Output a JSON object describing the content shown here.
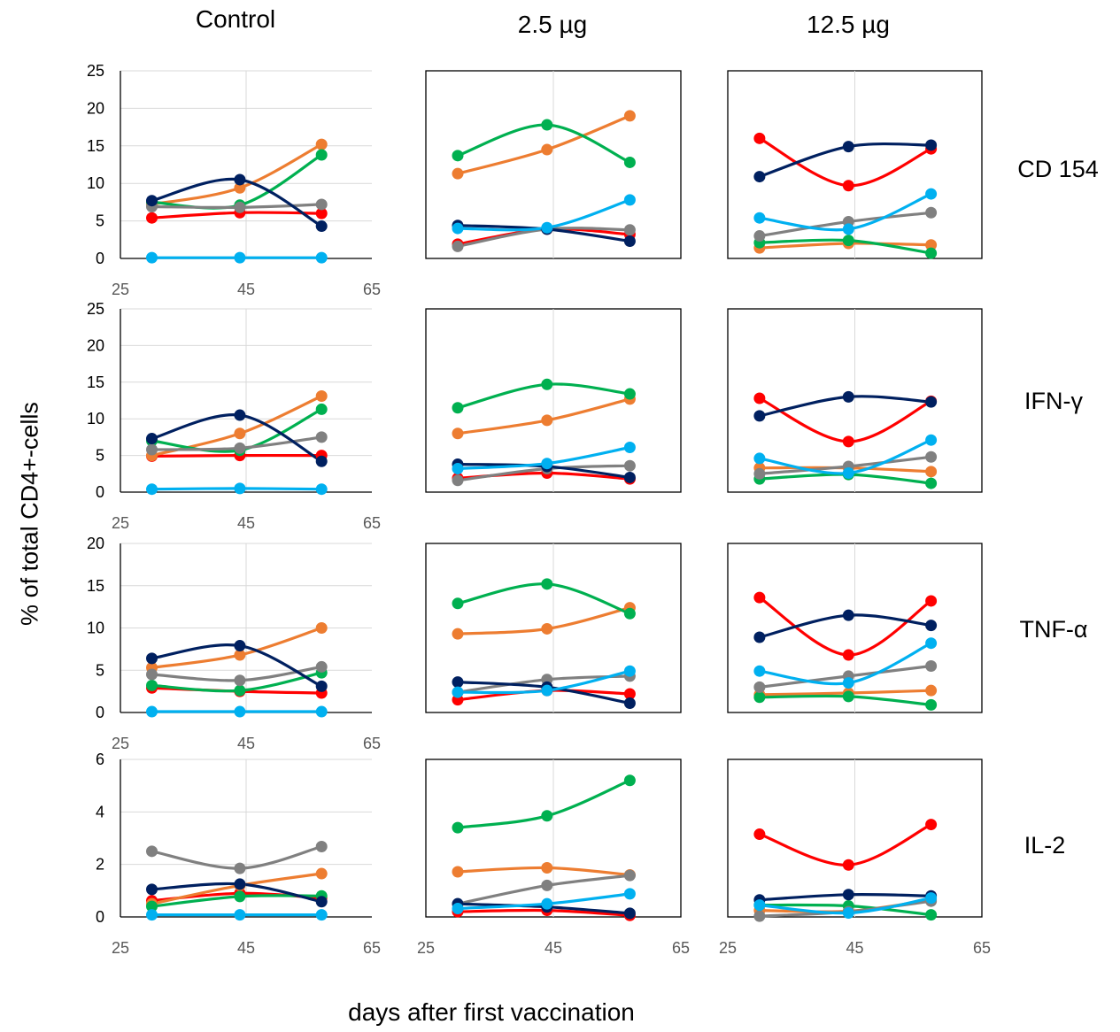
{
  "columns": [
    "Control",
    "2.5 µg",
    "12.5 µg"
  ],
  "rows": [
    "CD 154",
    "IFN-γ",
    "TNF-α",
    "IL-2"
  ],
  "ylabel": "% of total CD4+-cells",
  "xlabel": "days after first vaccination",
  "colors": {
    "red": "#ff0000",
    "orange": "#ed7d31",
    "green": "#00b050",
    "gray": "#808080",
    "navy": "#002060",
    "lightblue": "#00b0f0"
  },
  "chart_data": [
    {
      "type": "line",
      "title": "",
      "row": "CD 154",
      "column": "Control",
      "x": [
        30,
        44,
        57
      ],
      "xlim": [
        25,
        65
      ],
      "xticks": [
        "25",
        "45",
        "65"
      ],
      "ylim": [
        0,
        25
      ],
      "yticks": [
        "0",
        "5",
        "10",
        "15",
        "20",
        "25"
      ],
      "series": [
        {
          "color": "red",
          "values": [
            5.4,
            6.1,
            6.0
          ]
        },
        {
          "color": "orange",
          "values": [
            7.2,
            9.4,
            15.2
          ]
        },
        {
          "color": "green",
          "values": [
            7.5,
            7.1,
            13.8
          ]
        },
        {
          "color": "gray",
          "values": [
            6.9,
            6.8,
            7.2
          ]
        },
        {
          "color": "navy",
          "values": [
            7.7,
            10.5,
            4.3
          ]
        },
        {
          "color": "lightblue",
          "values": [
            0.1,
            0.1,
            0.1
          ]
        }
      ]
    },
    {
      "type": "line",
      "title": "",
      "row": "CD 154",
      "column": "2.5 µg",
      "x": [
        30,
        44,
        57
      ],
      "xlim": [
        25,
        65
      ],
      "ylim": [
        0,
        25
      ],
      "series": [
        {
          "color": "red",
          "values": [
            1.9,
            3.9,
            3.2
          ]
        },
        {
          "color": "orange",
          "values": [
            11.3,
            14.5,
            19.0
          ]
        },
        {
          "color": "green",
          "values": [
            13.7,
            17.8,
            12.8
          ]
        },
        {
          "color": "gray",
          "values": [
            1.6,
            3.9,
            3.8
          ]
        },
        {
          "color": "navy",
          "values": [
            4.4,
            3.9,
            2.3
          ]
        },
        {
          "color": "lightblue",
          "values": [
            4.0,
            4.1,
            7.8
          ]
        }
      ]
    },
    {
      "type": "line",
      "title": "",
      "row": "CD 154",
      "column": "12.5 µg",
      "x": [
        30,
        44,
        57
      ],
      "xlim": [
        25,
        65
      ],
      "ylim": [
        0,
        25
      ],
      "series": [
        {
          "color": "red",
          "values": [
            16.0,
            9.7,
            14.6
          ]
        },
        {
          "color": "orange",
          "values": [
            1.4,
            2.0,
            1.8
          ]
        },
        {
          "color": "green",
          "values": [
            2.1,
            2.4,
            0.7
          ]
        },
        {
          "color": "gray",
          "values": [
            3.0,
            4.9,
            6.1
          ]
        },
        {
          "color": "navy",
          "values": [
            10.9,
            14.9,
            15.1
          ]
        },
        {
          "color": "lightblue",
          "values": [
            5.4,
            3.9,
            8.6
          ]
        }
      ]
    },
    {
      "type": "line",
      "title": "",
      "row": "IFN-γ",
      "column": "Control",
      "x": [
        30,
        44,
        57
      ],
      "xlim": [
        25,
        65
      ],
      "xticks": [
        "25",
        "45",
        "65"
      ],
      "ylim": [
        0,
        25
      ],
      "yticks": [
        "0",
        "5",
        "10",
        "15",
        "20",
        "25"
      ],
      "series": [
        {
          "color": "red",
          "values": [
            4.9,
            5.0,
            5.0
          ]
        },
        {
          "color": "orange",
          "values": [
            5.0,
            8.0,
            13.1
          ]
        },
        {
          "color": "green",
          "values": [
            7.0,
            5.7,
            11.3
          ]
        },
        {
          "color": "gray",
          "values": [
            5.8,
            6.0,
            7.5
          ]
        },
        {
          "color": "navy",
          "values": [
            7.3,
            10.5,
            4.2
          ]
        },
        {
          "color": "lightblue",
          "values": [
            0.4,
            0.5,
            0.4
          ]
        }
      ]
    },
    {
      "type": "line",
      "title": "",
      "row": "IFN-γ",
      "column": "2.5 µg",
      "x": [
        30,
        44,
        57
      ],
      "xlim": [
        25,
        65
      ],
      "ylim": [
        0,
        25
      ],
      "series": [
        {
          "color": "red",
          "values": [
            1.9,
            2.6,
            1.8
          ]
        },
        {
          "color": "orange",
          "values": [
            8.0,
            9.8,
            12.7
          ]
        },
        {
          "color": "green",
          "values": [
            11.5,
            14.7,
            13.4
          ]
        },
        {
          "color": "gray",
          "values": [
            1.6,
            3.2,
            3.6
          ]
        },
        {
          "color": "navy",
          "values": [
            3.8,
            3.5,
            2.0
          ]
        },
        {
          "color": "lightblue",
          "values": [
            3.2,
            3.9,
            6.1
          ]
        }
      ]
    },
    {
      "type": "line",
      "title": "",
      "row": "IFN-γ",
      "column": "12.5 µg",
      "x": [
        30,
        44,
        57
      ],
      "xlim": [
        25,
        65
      ],
      "ylim": [
        0,
        25
      ],
      "series": [
        {
          "color": "red",
          "values": [
            12.8,
            6.9,
            12.4
          ]
        },
        {
          "color": "orange",
          "values": [
            3.3,
            3.3,
            2.8
          ]
        },
        {
          "color": "green",
          "values": [
            1.8,
            2.4,
            1.2
          ]
        },
        {
          "color": "gray",
          "values": [
            2.5,
            3.5,
            4.8
          ]
        },
        {
          "color": "navy",
          "values": [
            10.4,
            13.0,
            12.3
          ]
        },
        {
          "color": "lightblue",
          "values": [
            4.6,
            2.6,
            7.1
          ]
        }
      ]
    },
    {
      "type": "line",
      "title": "",
      "row": "TNF-α",
      "column": "Control",
      "x": [
        30,
        44,
        57
      ],
      "xlim": [
        25,
        65
      ],
      "xticks": [
        "25",
        "45",
        "65"
      ],
      "ylim": [
        0,
        20
      ],
      "yticks": [
        "0",
        "5",
        "10",
        "15",
        "20"
      ],
      "series": [
        {
          "color": "red",
          "values": [
            2.9,
            2.5,
            2.3
          ]
        },
        {
          "color": "orange",
          "values": [
            5.3,
            6.8,
            10.0
          ]
        },
        {
          "color": "green",
          "values": [
            3.2,
            2.6,
            4.7
          ]
        },
        {
          "color": "gray",
          "values": [
            4.5,
            3.8,
            5.4
          ]
        },
        {
          "color": "navy",
          "values": [
            6.4,
            7.9,
            3.1
          ]
        },
        {
          "color": "lightblue",
          "values": [
            0.1,
            0.1,
            0.1
          ]
        }
      ]
    },
    {
      "type": "line",
      "title": "",
      "row": "TNF-α",
      "column": "2.5 µg",
      "x": [
        30,
        44,
        57
      ],
      "xlim": [
        25,
        65
      ],
      "ylim": [
        0,
        20
      ],
      "series": [
        {
          "color": "red",
          "values": [
            1.5,
            2.6,
            2.2
          ]
        },
        {
          "color": "orange",
          "values": [
            9.3,
            9.9,
            12.4
          ]
        },
        {
          "color": "green",
          "values": [
            12.9,
            15.2,
            11.7
          ]
        },
        {
          "color": "gray",
          "values": [
            2.4,
            3.9,
            4.3
          ]
        },
        {
          "color": "navy",
          "values": [
            3.6,
            3.0,
            1.1
          ]
        },
        {
          "color": "lightblue",
          "values": [
            2.4,
            2.6,
            4.9
          ]
        }
      ]
    },
    {
      "type": "line",
      "title": "",
      "row": "TNF-α",
      "column": "12.5 µg",
      "x": [
        30,
        44,
        57
      ],
      "xlim": [
        25,
        65
      ],
      "ylim": [
        0,
        20
      ],
      "series": [
        {
          "color": "red",
          "values": [
            13.6,
            6.8,
            13.2
          ]
        },
        {
          "color": "orange",
          "values": [
            2.1,
            2.3,
            2.6
          ]
        },
        {
          "color": "green",
          "values": [
            1.8,
            1.9,
            0.9
          ]
        },
        {
          "color": "gray",
          "values": [
            3.0,
            4.3,
            5.5
          ]
        },
        {
          "color": "navy",
          "values": [
            8.9,
            11.5,
            10.3
          ]
        },
        {
          "color": "lightblue",
          "values": [
            4.9,
            3.5,
            8.2
          ]
        }
      ]
    },
    {
      "type": "line",
      "title": "",
      "row": "IL-2",
      "column": "Control",
      "x": [
        30,
        44,
        57
      ],
      "xlim": [
        25,
        65
      ],
      "xticks": [
        "25",
        "45",
        "65"
      ],
      "ylim": [
        0,
        6
      ],
      "yticks": [
        "0",
        "2",
        "4",
        "6"
      ],
      "series": [
        {
          "color": "red",
          "values": [
            0.62,
            0.9,
            0.72
          ]
        },
        {
          "color": "orange",
          "values": [
            0.5,
            1.2,
            1.65
          ]
        },
        {
          "color": "green",
          "values": [
            0.4,
            0.78,
            0.8
          ]
        },
        {
          "color": "gray",
          "values": [
            2.5,
            1.85,
            2.68
          ]
        },
        {
          "color": "navy",
          "values": [
            1.05,
            1.25,
            0.58
          ]
        },
        {
          "color": "lightblue",
          "values": [
            0.08,
            0.08,
            0.08
          ]
        }
      ]
    },
    {
      "type": "line",
      "title": "",
      "row": "IL-2",
      "column": "2.5 µg",
      "x": [
        30,
        44,
        57
      ],
      "xlim": [
        25,
        65
      ],
      "xticks": [
        "25",
        "45",
        "65"
      ],
      "ylim": [
        0,
        6
      ],
      "series": [
        {
          "color": "red",
          "values": [
            0.2,
            0.25,
            0.06
          ]
        },
        {
          "color": "orange",
          "values": [
            1.72,
            1.87,
            1.6
          ]
        },
        {
          "color": "green",
          "values": [
            3.4,
            3.85,
            5.2
          ]
        },
        {
          "color": "gray",
          "values": [
            0.5,
            1.2,
            1.58
          ]
        },
        {
          "color": "navy",
          "values": [
            0.5,
            0.38,
            0.14
          ]
        },
        {
          "color": "lightblue",
          "values": [
            0.32,
            0.5,
            0.88
          ]
        }
      ]
    },
    {
      "type": "line",
      "title": "",
      "row": "IL-2",
      "column": "12.5 µg",
      "x": [
        30,
        44,
        57
      ],
      "xlim": [
        25,
        65
      ],
      "xticks": [
        "25",
        "45",
        "65"
      ],
      "ylim": [
        0,
        6
      ],
      "series": [
        {
          "color": "red",
          "values": [
            3.15,
            1.98,
            3.52
          ]
        },
        {
          "color": "orange",
          "values": [
            0.25,
            0.22,
            0.65
          ]
        },
        {
          "color": "green",
          "values": [
            0.45,
            0.42,
            0.08
          ]
        },
        {
          "color": "gray",
          "values": [
            0.03,
            0.2,
            0.6
          ]
        },
        {
          "color": "navy",
          "values": [
            0.65,
            0.85,
            0.8
          ]
        },
        {
          "color": "lightblue",
          "values": [
            0.45,
            0.15,
            0.72
          ]
        }
      ]
    }
  ]
}
